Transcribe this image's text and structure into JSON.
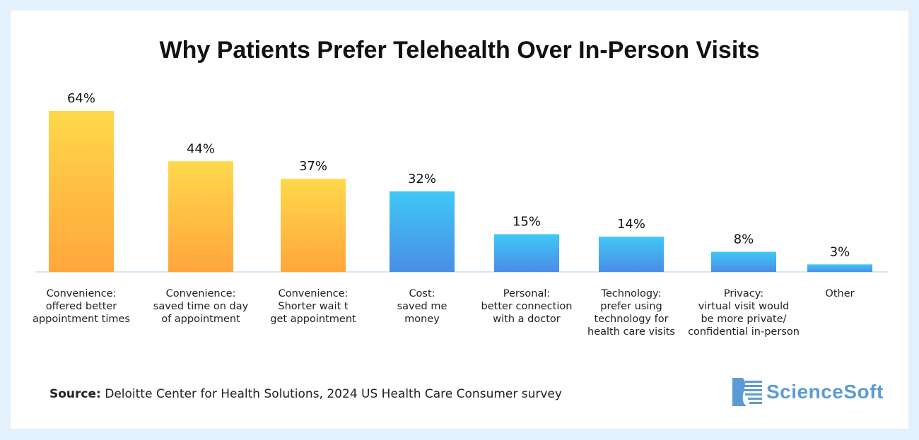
{
  "chart_data": {
    "type": "bar",
    "title": "Why Patients Prefer Telehealth Over In-Person Visits",
    "categories": [
      "Convenience:\noffered better\nappointment times",
      "Convenience:\nsaved time on day\nof appointment",
      "Convenience:\nShorter wait t\nget appointment",
      "Cost:\nsaved me\nmoney",
      "Personal:\nbetter connection\nwith a doctor",
      "Technology:\nprefer using\ntechnology for\nhealth care visits",
      "Privacy:\nvirtual visit would\nbe more private/\nconfidential in-person",
      "Other"
    ],
    "values": [
      64,
      44,
      37,
      32,
      15,
      14,
      8,
      3
    ],
    "data_labels": [
      "64%",
      "44%",
      "37%",
      "32%",
      "15%",
      "14%",
      "8%",
      "3%"
    ],
    "bar_colors": [
      "#FFC845",
      "#FFC845",
      "#FFC845",
      "#3FB8F2",
      "#3FB8F2",
      "#3FB8F2",
      "#3FB8F2",
      "#3FB8F2"
    ],
    "ylim": [
      0,
      64
    ],
    "grid": false,
    "legend": "none"
  },
  "source": {
    "label": "Source:",
    "text": " Deloitte Center for Health Solutions, 2024 US Health Care Consumer survey"
  },
  "logo": {
    "text": "ScienceSoft",
    "color": "#5b9bd5"
  }
}
